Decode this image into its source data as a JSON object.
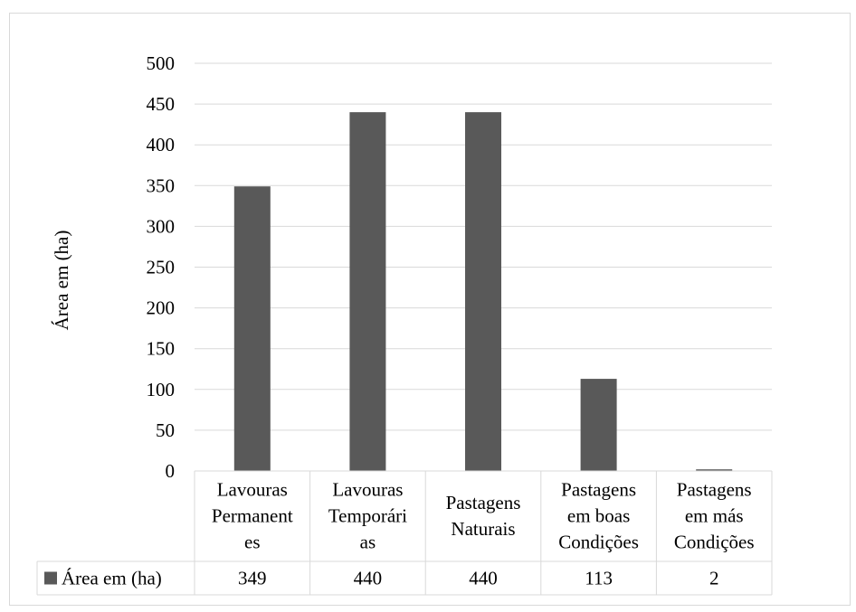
{
  "chart_data": {
    "type": "bar",
    "title": "",
    "xlabel": "",
    "ylabel": "Área em (ha)",
    "ylim": [
      0,
      500
    ],
    "yticks": [
      0,
      50,
      100,
      150,
      200,
      250,
      300,
      350,
      400,
      450,
      500
    ],
    "categories": [
      [
        "Lavouras",
        "Permanent",
        "es"
      ],
      [
        "Lavouras",
        "Temporári",
        "as"
      ],
      [
        "Pastagens",
        "Naturais"
      ],
      [
        "Pastagens",
        "em boas",
        "Condições"
      ],
      [
        "Pastagens",
        "em más",
        "Condições"
      ]
    ],
    "series": [
      {
        "name": "Área em (ha)",
        "values": [
          349,
          440,
          440,
          113,
          2
        ]
      }
    ],
    "data_table": true,
    "legend_position": "data-table-row",
    "grid": true,
    "colors": {
      "bar": "#595959",
      "grid": "#d9d9d9",
      "table_border": "#d9d9d9",
      "text": "#000000"
    }
  }
}
